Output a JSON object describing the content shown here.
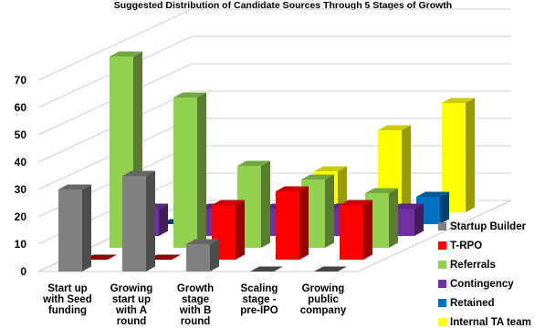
{
  "chart_data": {
    "type": "bar",
    "title": "Suggested Distribution of Candidate Sources Through 5 Stages of Growth",
    "categories": [
      "Start up with Seed funding",
      "Growing start up with A round",
      "Growth stage with B round",
      "Scaling stage - pre-IPO",
      "Growing public company"
    ],
    "category_lines": [
      [
        "Start up",
        "with Seed",
        "funding"
      ],
      [
        "Growing",
        "start up",
        "with A",
        "round"
      ],
      [
        "Growth",
        "stage",
        "with B",
        "round"
      ],
      [
        "Scaling",
        "stage -",
        "pre-IPO"
      ],
      [
        "Growing",
        "public",
        "company"
      ]
    ],
    "y_ticks": [
      "0",
      "10",
      "20",
      "30",
      "40",
      "50",
      "60",
      "70"
    ],
    "ylim": [
      0,
      70
    ],
    "grid": true,
    "legend_position": "right",
    "bar_style": "3d",
    "series": [
      {
        "name": "Startup Builder",
        "color": "#808080",
        "values": [
          30,
          35,
          10,
          0,
          0
        ]
      },
      {
        "name": "T-RPO",
        "color": "#ff0000",
        "values": [
          0,
          0,
          20,
          25,
          20
        ]
      },
      {
        "name": "Referrals",
        "color": "#92d050",
        "values": [
          70,
          55,
          30,
          25,
          20
        ]
      },
      {
        "name": "Contingency",
        "color": "#7030a0",
        "values": [
          10,
          10,
          10,
          10,
          10
        ]
      },
      {
        "name": "Retained",
        "color": "#0070c0",
        "values": [
          0,
          0,
          0,
          5,
          10
        ]
      },
      {
        "name": "Internal TA team",
        "color": "#ffff00",
        "values": [
          0,
          0,
          15,
          30,
          40
        ]
      }
    ]
  }
}
